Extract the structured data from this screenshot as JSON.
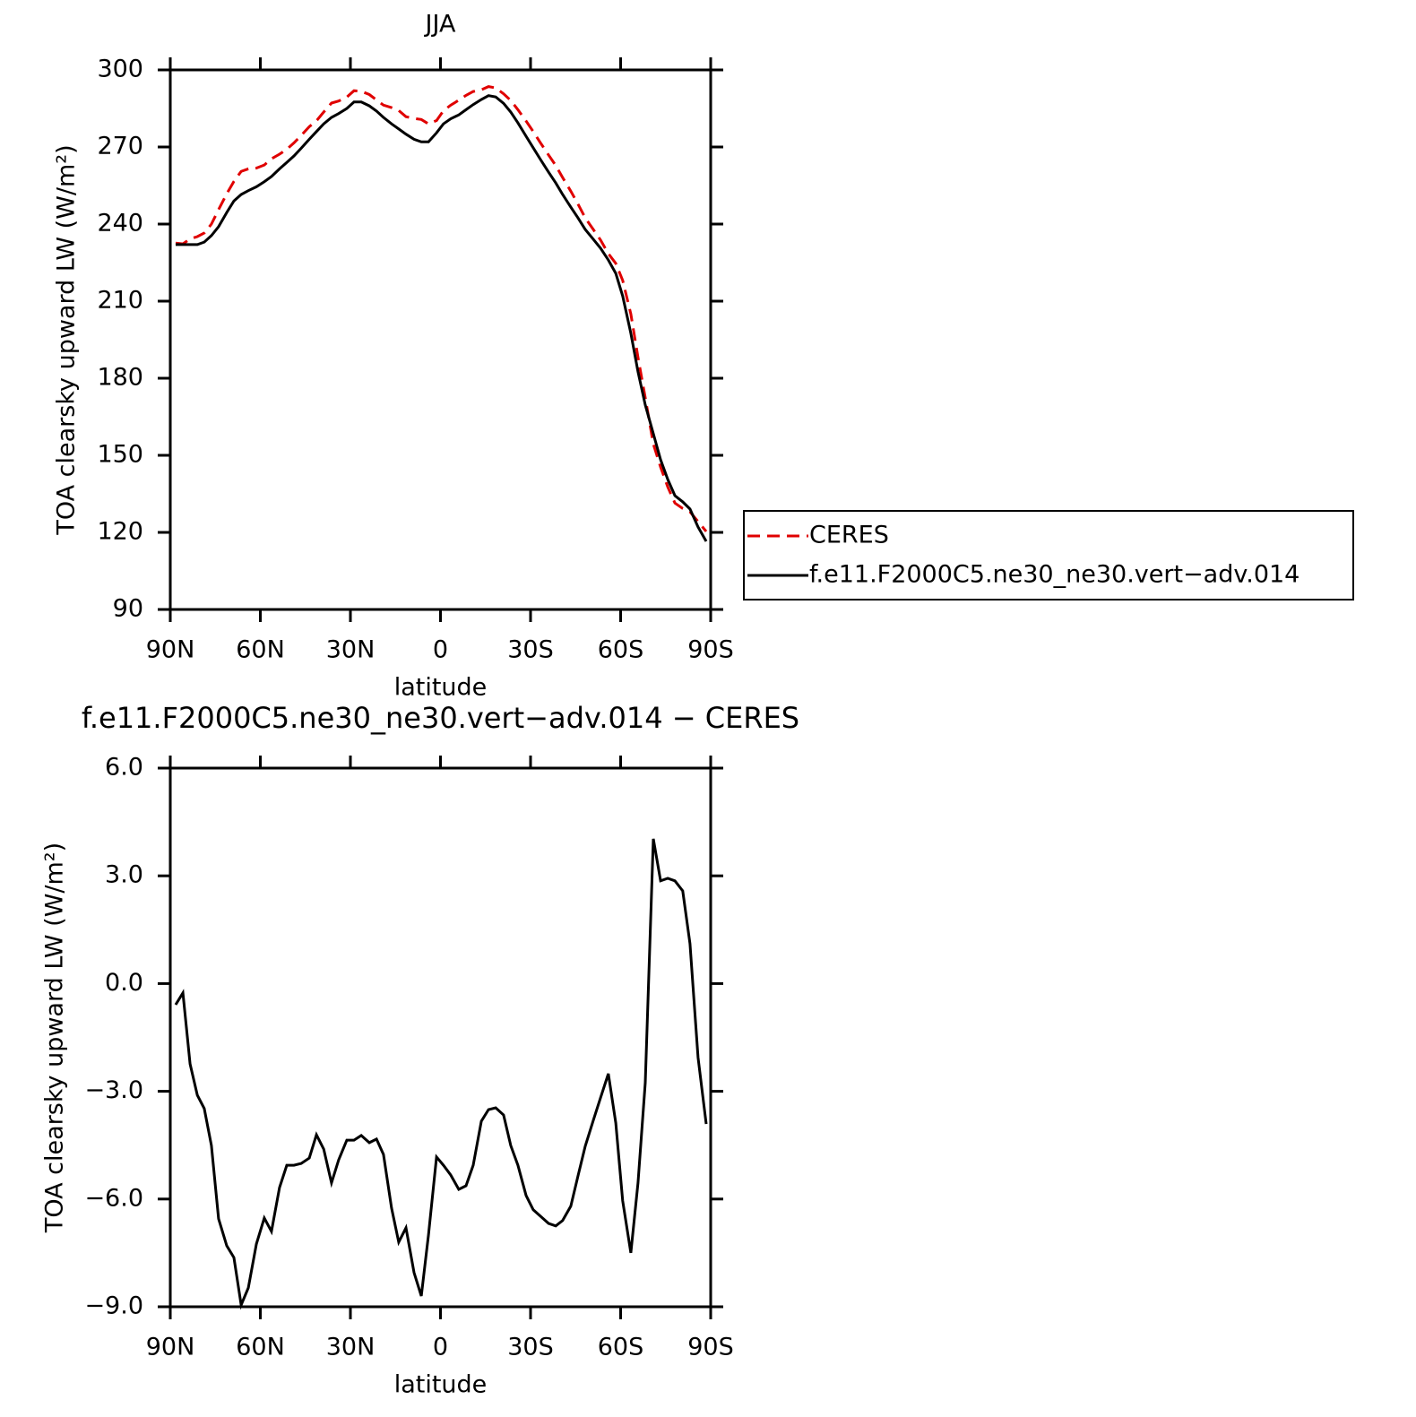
{
  "chart_data": [
    {
      "type": "line",
      "title": "JJA",
      "xlabel": "latitude",
      "ylabel": "TOA clearsky upward LW (W/m²)",
      "x": [
        88.2,
        85.8,
        83.4,
        81.0,
        78.7,
        76.3,
        73.9,
        71.2,
        68.8,
        66.4,
        64.0,
        61.3,
        58.7,
        56.3,
        53.6,
        51.2,
        48.8,
        46.4,
        43.7,
        41.3,
        38.9,
        36.3,
        33.9,
        31.2,
        28.8,
        26.4,
        23.7,
        21.3,
        19.0,
        16.3,
        13.9,
        11.5,
        8.8,
        6.4,
        4.0,
        1.3,
        -1.0,
        -3.4,
        -6.1,
        -8.5,
        -10.9,
        -13.6,
        -16.0,
        -18.4,
        -21.0,
        -23.4,
        -25.8,
        -28.5,
        -30.9,
        -33.3,
        -36.0,
        -38.4,
        -40.7,
        -43.4,
        -45.8,
        -48.2,
        -50.9,
        -53.3,
        -55.9,
        -58.4,
        -60.7,
        -63.4,
        -65.8,
        -68.2,
        -70.9,
        -73.3,
        -75.7,
        -78.1,
        -80.7,
        -83.1,
        -85.8,
        -88.5
      ],
      "series": [
        {
          "name": "CERES",
          "color": "#e00000",
          "style": "dashed",
          "values": [
            232.6,
            232.3,
            234.2,
            235.1,
            236.5,
            240.0,
            245.6,
            251.8,
            256.6,
            260.5,
            261.5,
            261.8,
            263.0,
            265.4,
            267.2,
            269.1,
            271.6,
            274.5,
            277.9,
            280.2,
            283.6,
            287.1,
            287.9,
            289.4,
            291.9,
            291.7,
            290.4,
            288.3,
            286.3,
            285.3,
            284.2,
            281.8,
            281.1,
            280.7,
            279.0,
            280.3,
            284.1,
            286.3,
            288.2,
            290.1,
            291.6,
            292.3,
            293.5,
            293.0,
            290.7,
            288.1,
            284.5,
            280.1,
            276.0,
            271.6,
            266.9,
            262.8,
            258.1,
            252.8,
            247.8,
            242.4,
            237.9,
            233.8,
            228.5,
            224.7,
            218.1,
            205.0,
            188.1,
            172.4,
            154.4,
            145.4,
            137.7,
            131.4,
            129.3,
            128.0,
            124.2,
            120.4
          ]
        },
        {
          "name": "f.e11.F2000C5.ne30_ne30.vert−adv.014",
          "color": "#000000",
          "style": "solid",
          "values": [
            232,
            232,
            232,
            232,
            233,
            235.5,
            239,
            244.5,
            249,
            251.5,
            253,
            254.5,
            256.5,
            258.5,
            261.5,
            264,
            266.5,
            269.5,
            273,
            276,
            279,
            281.5,
            283,
            285,
            287.5,
            287.5,
            286,
            284,
            281.5,
            279,
            277,
            275,
            273,
            272,
            272,
            275.5,
            279,
            281,
            282.5,
            284.5,
            286.5,
            288.5,
            290,
            289.5,
            287,
            283.6,
            279.4,
            274.2,
            269.7,
            265.1,
            260.2,
            256,
            251.5,
            246.6,
            242.4,
            237.9,
            234.1,
            230.6,
            226,
            220.8,
            212,
            197.5,
            182.5,
            169.6,
            158.4,
            148.3,
            140.6,
            134.3,
            131.9,
            129.1,
            122.1,
            116.5
          ]
        }
      ],
      "xlim": [
        90,
        -90
      ],
      "xticks": [
        {
          "value": 90,
          "label": "90N"
        },
        {
          "value": 60,
          "label": "60N"
        },
        {
          "value": 30,
          "label": "30N"
        },
        0,
        {
          "value": -30,
          "label": "30S"
        },
        {
          "value": -60,
          "label": "60S"
        },
        {
          "value": -90,
          "label": "90S"
        }
      ],
      "ylim": [
        90,
        300
      ],
      "yticks": [
        90,
        120,
        150,
        180,
        210,
        240,
        270,
        300
      ],
      "legend": "right"
    },
    {
      "type": "line",
      "title": "f.e11.F2000C5.ne30_ne30.vert−adv.014 − CERES",
      "xlabel": "latitude",
      "ylabel": "TOA clearsky upward LW (W/m²)",
      "x": [
        88.2,
        85.8,
        83.4,
        81.0,
        78.7,
        76.3,
        73.9,
        71.2,
        68.8,
        66.4,
        64.0,
        61.3,
        58.7,
        56.3,
        53.6,
        51.2,
        48.8,
        46.4,
        43.7,
        41.3,
        38.9,
        36.3,
        33.9,
        31.2,
        28.8,
        26.4,
        23.7,
        21.3,
        19.0,
        16.3,
        13.9,
        11.5,
        8.8,
        6.4,
        4.0,
        1.3,
        -1.0,
        -3.4,
        -6.1,
        -8.5,
        -10.9,
        -13.6,
        -16.0,
        -18.4,
        -21.0,
        -23.4,
        -25.8,
        -28.5,
        -30.9,
        -33.3,
        -36.0,
        -38.4,
        -40.7,
        -43.4,
        -45.8,
        -48.2,
        -50.9,
        -53.3,
        -55.9,
        -58.4,
        -60.7,
        -63.4,
        -65.8,
        -68.2,
        -70.9,
        -73.3,
        -75.7,
        -78.1,
        -80.7,
        -83.1,
        -85.8,
        -88.5
      ],
      "values": [
        -0.59,
        -0.26,
        -2.24,
        -3.11,
        -3.48,
        -4.51,
        -6.55,
        -7.3,
        -7.63,
        -8.95,
        -8.47,
        -7.25,
        -6.53,
        -6.9,
        -5.68,
        -5.06,
        -5.06,
        -5.01,
        -4.86,
        -4.21,
        -4.61,
        -5.55,
        -4.91,
        -4.36,
        -4.36,
        -4.23,
        -4.43,
        -4.33,
        -4.76,
        -6.25,
        -7.2,
        -6.8,
        -8.05,
        -8.7,
        -7.0,
        -4.83,
        -5.06,
        -5.33,
        -5.73,
        -5.63,
        -5.06,
        -3.83,
        -3.51,
        -3.46,
        -3.66,
        -4.51,
        -5.06,
        -5.9,
        -6.3,
        -6.48,
        -6.68,
        -6.75,
        -6.6,
        -6.2,
        -5.36,
        -4.53,
        -3.81,
        -3.18,
        -2.51,
        -3.88,
        -6.05,
        -7.5,
        -5.55,
        -2.76,
        4.03,
        2.86,
        2.93,
        2.86,
        2.58,
        1.11,
        -2.06,
        -3.91
      ],
      "color": "#000000",
      "xlim": [
        90,
        -90
      ],
      "xticks": [
        {
          "value": 90,
          "label": "90N"
        },
        {
          "value": 60,
          "label": "60N"
        },
        {
          "value": 30,
          "label": "30N"
        },
        0,
        {
          "value": -30,
          "label": "30S"
        },
        {
          "value": -60,
          "label": "60S"
        },
        {
          "value": -90,
          "label": "90S"
        }
      ],
      "ylim": [
        -9,
        6
      ],
      "yticks": [
        {
          "value": -9,
          "label": "−9.0"
        },
        {
          "value": -6,
          "label": "−6.0"
        },
        {
          "value": -3,
          "label": "−3.0"
        },
        {
          "value": 0,
          "label": "0.0"
        },
        {
          "value": 3,
          "label": "3.0"
        },
        {
          "value": 6,
          "label": "6.0"
        }
      ]
    }
  ]
}
